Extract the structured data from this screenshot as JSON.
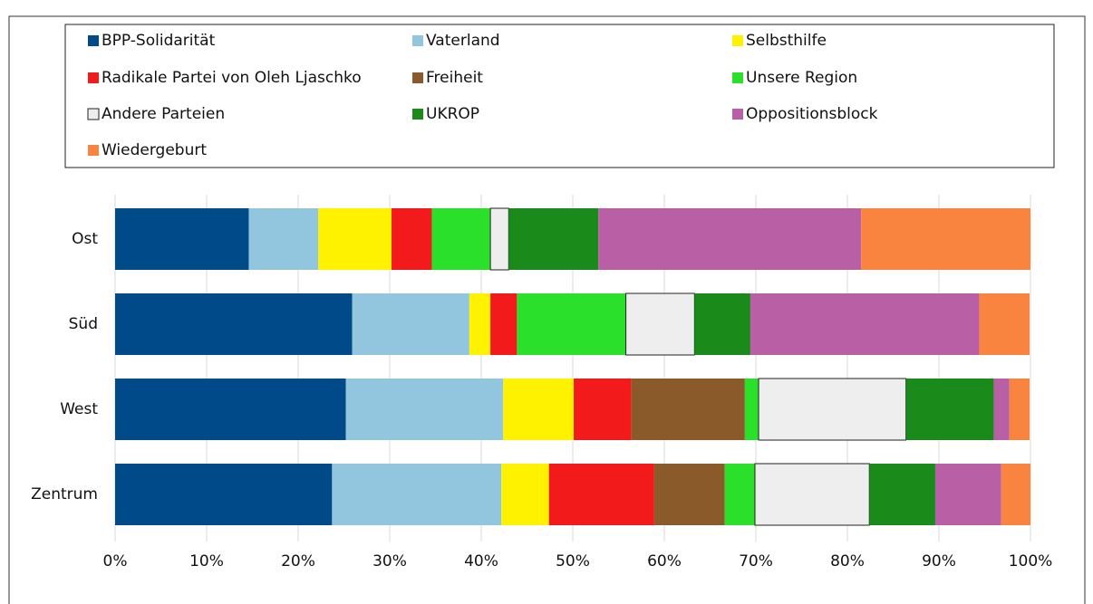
{
  "chart_data": {
    "type": "bar",
    "orientation": "horizontal",
    "stacked": "percent",
    "categories": [
      "Ost",
      "Süd",
      "West",
      "Zentrum"
    ],
    "series": [
      {
        "name": "BPP-Solidarität",
        "color": "#004a8a",
        "values": [
          14.6,
          25.9,
          25.2,
          23.7
        ]
      },
      {
        "name": "Vaterland",
        "color": "#92c5de",
        "values": [
          7.6,
          12.8,
          17.2,
          18.5
        ]
      },
      {
        "name": "Selbsthilfe",
        "color": "#fff200",
        "values": [
          8.0,
          2.3,
          7.7,
          5.2
        ]
      },
      {
        "name": "Radikale Partei von Oleh Ljaschko",
        "color": "#f21a1a",
        "values": [
          4.4,
          2.9,
          6.3,
          11.5
        ]
      },
      {
        "name": "Freiheit",
        "color": "#8b5a2b",
        "values": [
          0,
          0,
          12.4,
          7.7
        ]
      },
      {
        "name": "Unsere Region",
        "color": "#2be02b",
        "values": [
          6.4,
          11.9,
          1.5,
          3.3
        ]
      },
      {
        "name": "Andere Parteien",
        "color": "#eeeeee",
        "values": [
          2.0,
          7.5,
          16.1,
          12.5
        ]
      },
      {
        "name": "UKROP",
        "color": "#1a8a1a",
        "values": [
          9.8,
          6.1,
          9.6,
          7.2
        ]
      },
      {
        "name": "Oppositionsblock",
        "color": "#b85fa5",
        "values": [
          28.7,
          25.0,
          1.7,
          7.2
        ]
      },
      {
        "name": "Wiedergeburt",
        "color": "#f98440",
        "values": [
          18.5,
          5.5,
          2.2,
          3.2
        ]
      }
    ],
    "xlim": [
      0,
      100
    ],
    "xticks": [
      {
        "value": 0,
        "label": "0%"
      },
      {
        "value": 10,
        "label": "10%"
      },
      {
        "value": 20,
        "label": "20%"
      },
      {
        "value": 30,
        "label": "30%"
      },
      {
        "value": 40,
        "label": "40%"
      },
      {
        "value": 50,
        "label": "50%"
      },
      {
        "value": 60,
        "label": "60%"
      },
      {
        "value": 70,
        "label": "70%"
      },
      {
        "value": 80,
        "label": "80%"
      },
      {
        "value": 90,
        "label": "90%"
      },
      {
        "value": 100,
        "label": "100%"
      }
    ],
    "grid": true,
    "legend": "top"
  }
}
